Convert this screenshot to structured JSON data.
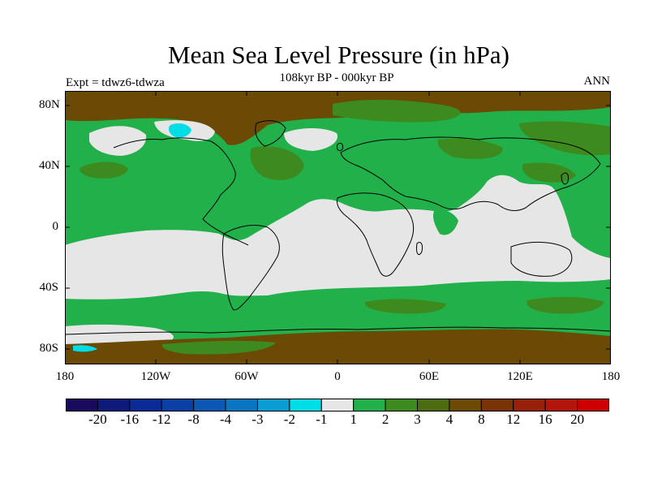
{
  "header": {
    "title": "Mean Sea Level Pressure (in hPa)",
    "subtitle": "108kyr BP - 000kyr BP",
    "left_note": "Expt = tdwz6-tdwza",
    "right_note": "ANN"
  },
  "axes": {
    "lat_labels": [
      "80N",
      "40N",
      "0",
      "40S",
      "80S"
    ],
    "lon_labels": [
      "180",
      "120W",
      "60W",
      "0",
      "60E",
      "120E",
      "180"
    ]
  },
  "colorbar": {
    "labels": [
      "-20",
      "-16",
      "-12",
      "-8",
      "-4",
      "-3",
      "-2",
      "-1",
      "1",
      "2",
      "3",
      "4",
      "8",
      "12",
      "16",
      "20"
    ],
    "colors": [
      "#1a0a5e",
      "#0d1a7a",
      "#0a2b96",
      "#0a3fa3",
      "#0a58b3",
      "#0a76c2",
      "#0a9dd3",
      "#00dde7",
      "#e6e6e6",
      "#22b04b",
      "#3d8a1f",
      "#4d6b10",
      "#6b4a06",
      "#7a3306",
      "#962008",
      "#b3150a",
      "#cc0000"
    ]
  },
  "colors": {
    "background": "#ffffff",
    "ocean_neutral": "#e6e6e6",
    "green_light": "#22b04b",
    "green_dark": "#3d8a1f",
    "brown": "#6b4a06",
    "cyan": "#00dde7",
    "coastline": "#000000"
  }
}
